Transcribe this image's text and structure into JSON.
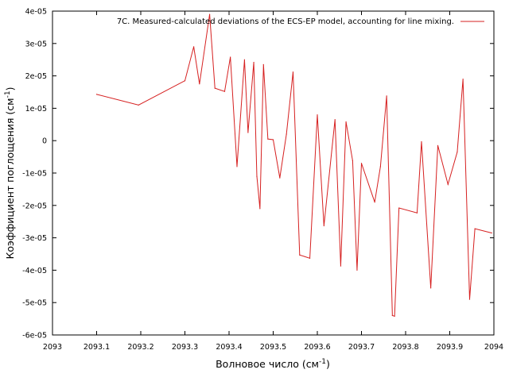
{
  "chart_data": {
    "type": "line",
    "xlabel": "Волновое число (см",
    "xlabel_sup": "-1",
    "xlabel_end": ")",
    "ylabel": "Коэффициент поглощения (см",
    "ylabel_sup": "-1",
    "ylabel_end": ")",
    "xlim": [
      2093,
      2094
    ],
    "ylim": [
      -6e-05,
      4e-05
    ],
    "x_ticks": [
      2093,
      2093.1,
      2093.2,
      2093.3,
      2093.4,
      2093.5,
      2093.6,
      2093.7,
      2093.8,
      2093.9,
      2094
    ],
    "x_tick_labels": [
      "2093",
      "2093.1",
      "2093.2",
      "2093.3",
      "2093.4",
      "2093.5",
      "2093.6",
      "2093.7",
      "2093.8",
      "2093.9",
      "2094"
    ],
    "y_ticks": [
      4e-05,
      3e-05,
      2e-05,
      1e-05,
      0,
      -1e-05,
      -2e-05,
      -3e-05,
      -4e-05,
      -5e-05,
      -6e-05
    ],
    "y_tick_labels": [
      "4e-05",
      "3e-05",
      "2e-05",
      "1e-05",
      "0",
      "-1e-05",
      "-2e-05",
      "-3e-05",
      "-4e-05",
      "-5e-05",
      "-6e-05"
    ],
    "grid": false,
    "legend_position": "top-right",
    "series": [
      {
        "name": "7C. Measured-calculated deviations of the ECS-EP model, accounting for line mixing.",
        "color": "#d62020",
        "x": [
          2093.1,
          2093.195,
          2093.3,
          2093.32,
          2093.333,
          2093.356,
          2093.368,
          2093.39,
          2093.403,
          2093.418,
          2093.435,
          2093.443,
          2093.456,
          2093.463,
          2093.47,
          2093.478,
          2093.488,
          2093.5,
          2093.515,
          2093.53,
          2093.545,
          2093.56,
          2093.583,
          2093.6,
          2093.615,
          2093.64,
          2093.653,
          2093.665,
          2093.68,
          2093.69,
          2093.7,
          2093.73,
          2093.743,
          2093.757,
          2093.77,
          2093.775,
          2093.785,
          2093.826,
          2093.836,
          2093.857,
          2093.873,
          2093.896,
          2093.917,
          2093.93,
          2093.945,
          2093.957,
          2093.995
        ],
        "y": [
          1.43e-05,
          1.1e-05,
          1.85e-05,
          2.9e-05,
          1.75e-05,
          3.9e-05,
          1.62e-05,
          1.52e-05,
          2.58e-05,
          -8e-06,
          2.5e-05,
          2.5e-06,
          2.42e-05,
          -1.1e-05,
          -2.1e-05,
          2.35e-05,
          5e-07,
          3e-07,
          -1.15e-05,
          2e-06,
          2.12e-05,
          -3.53e-05,
          -3.63e-05,
          8e-06,
          -2.63e-05,
          6.5e-06,
          -3.87e-05,
          5.8e-06,
          -6.2e-06,
          -4e-05,
          -7e-06,
          -1.9e-05,
          -8e-06,
          1.38e-05,
          -5.4e-05,
          -5.42e-05,
          -2.08e-05,
          -2.23e-05,
          -3e-07,
          -4.55e-05,
          -1.5e-06,
          -1.35e-05,
          -3.5e-06,
          1.9e-05,
          -4.9e-05,
          -2.72e-05,
          -2.85e-05
        ]
      }
    ]
  }
}
